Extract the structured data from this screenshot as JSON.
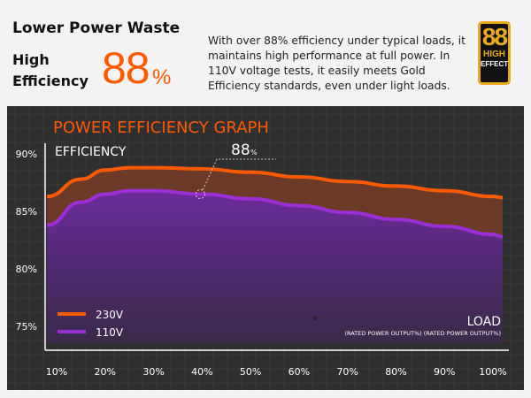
{
  "header": {
    "headline": "Lower Power Waste",
    "highlight_line1": "High",
    "highlight_line2": "Efficiency",
    "big_number": "88",
    "big_unit": "%",
    "description": "With over 88% efficiency under typical loads, it maintains high performance at full power. In 110V voltage tests, it easily meets Gold Efficiency standards, even under light loads.",
    "badge": {
      "number": "88",
      "line1": "HIGH",
      "line2": "EFFECT",
      "color": "#e7a91e"
    }
  },
  "chart_data": {
    "type": "area",
    "title": "POWER EFFICIENCY GRAPH",
    "ylabel": "EFFICIENCY",
    "xlabel": "LOAD",
    "xlabel_sub": "(RATED POWER OUTPUT%) (RATED POWER OUTPUT%)",
    "stray_mark": "V",
    "x_ticks": [
      "10%",
      "20%",
      "30%",
      "40%",
      "50%",
      "60%",
      "70%",
      "80%",
      "90%",
      "100%"
    ],
    "y_ticks": [
      "90%",
      "85%",
      "80%",
      "75%"
    ],
    "xlim": [
      5,
      105
    ],
    "ylim": [
      73.8,
      91
    ],
    "grid": true,
    "legend_position": "bottom-left",
    "annotation": {
      "value": "88",
      "unit": "%",
      "x": 40,
      "y": 86.5
    },
    "x": [
      8,
      15,
      20,
      25,
      30,
      40,
      50,
      60,
      70,
      80,
      90,
      100,
      102
    ],
    "series": [
      {
        "name": "230V",
        "color": "#ff5a00",
        "values": [
          86.3,
          87.8,
          88.6,
          88.8,
          88.8,
          88.7,
          88.4,
          88.0,
          87.6,
          87.2,
          86.8,
          86.3,
          86.2
        ]
      },
      {
        "name": "110V",
        "color": "#9b2fd6",
        "values": [
          83.8,
          85.8,
          86.5,
          86.8,
          86.8,
          86.5,
          86.1,
          85.5,
          84.9,
          84.3,
          83.7,
          83.0,
          82.8
        ]
      }
    ]
  }
}
